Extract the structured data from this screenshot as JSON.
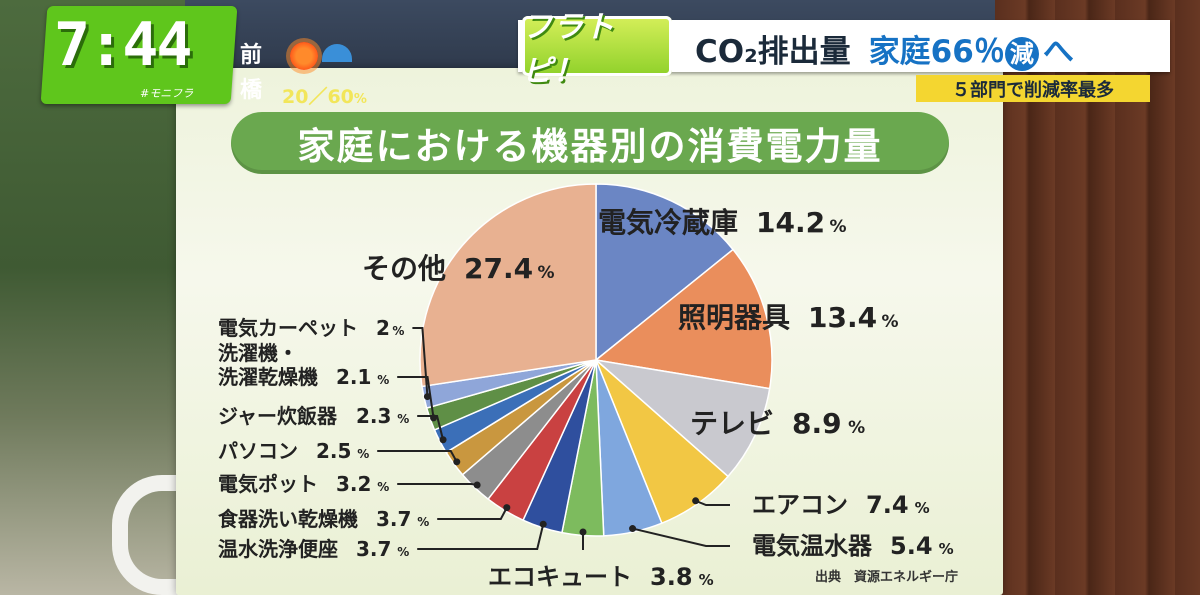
{
  "clock": {
    "time": "7:44",
    "sub": "#モニフラ"
  },
  "weather": {
    "city_line1": "前",
    "city_line2": "橋",
    "sun_icon": "sun-icon",
    "umbrella_icon": "umbrella-icon",
    "pct": "20／60",
    "pct_unit": "%"
  },
  "banner": {
    "logo": "フラトピ！",
    "headline": "CO₂排出量",
    "headline2": "家庭66％",
    "headline_badge": "減",
    "headline_tail": "へ",
    "sub": "５部門で削減率最多"
  },
  "chart_data": {
    "type": "pie",
    "title": "家庭における機器別の消費電力量",
    "unit": "%",
    "source": "出典　資源エネルギー庁",
    "slices": [
      {
        "label": "電気冷蔵庫",
        "value": 14.2,
        "color": "#6b86c4"
      },
      {
        "label": "照明器具",
        "value": 13.4,
        "color": "#ea8e5c"
      },
      {
        "label": "テレビ",
        "value": 8.9,
        "color": "#c9c9cf"
      },
      {
        "label": "エアコン",
        "value": 7.4,
        "color": "#f2c744"
      },
      {
        "label": "電気温水器",
        "value": 5.4,
        "color": "#7fa7de"
      },
      {
        "label": "エコキュート",
        "value": 3.8,
        "color": "#7dbb5e"
      },
      {
        "label": "温水洗浄便座",
        "value": 3.7,
        "color": "#2f4f9e"
      },
      {
        "label": "食器洗い乾燥機",
        "value": 3.7,
        "color": "#c94141"
      },
      {
        "label": "電気ポット",
        "value": 3.2,
        "color": "#8d8d8d"
      },
      {
        "label": "パソコン",
        "value": 2.5,
        "color": "#c9973f"
      },
      {
        "label": "ジャー炊飯器",
        "value": 2.3,
        "color": "#3b6fb8"
      },
      {
        "label": "洗濯機・洗濯乾燥機",
        "value": 2.1,
        "color": "#5f8f46"
      },
      {
        "label": "電気カーペット",
        "value": 2.0,
        "color": "#8fa6d9"
      },
      {
        "label": "その他",
        "value": 27.4,
        "color": "#e8b191"
      }
    ],
    "labels": [
      {
        "text": "電気冷蔵庫",
        "value": "14.2"
      },
      {
        "text": "照明器具",
        "value": "13.4"
      },
      {
        "text": "テレビ",
        "value": "8.9"
      },
      {
        "text": "エアコン",
        "value": "7.4"
      },
      {
        "text": "電気温水器",
        "value": "5.4"
      },
      {
        "text": "エコキュート",
        "value": "3.8"
      },
      {
        "text": "温水洗浄便座",
        "value": "3.7"
      },
      {
        "text": "食器洗い乾燥機",
        "value": "3.7"
      },
      {
        "text": "電気ポット",
        "value": "3.2"
      },
      {
        "text": "パソコン",
        "value": "2.5"
      },
      {
        "text": "ジャー炊飯器",
        "value": "2.3"
      },
      {
        "text": "洗濯機・\n洗濯乾燥機",
        "value": "2.1"
      },
      {
        "text": "電気カーペット",
        "value": "2"
      },
      {
        "text": "その他",
        "value": "27.4"
      }
    ]
  }
}
